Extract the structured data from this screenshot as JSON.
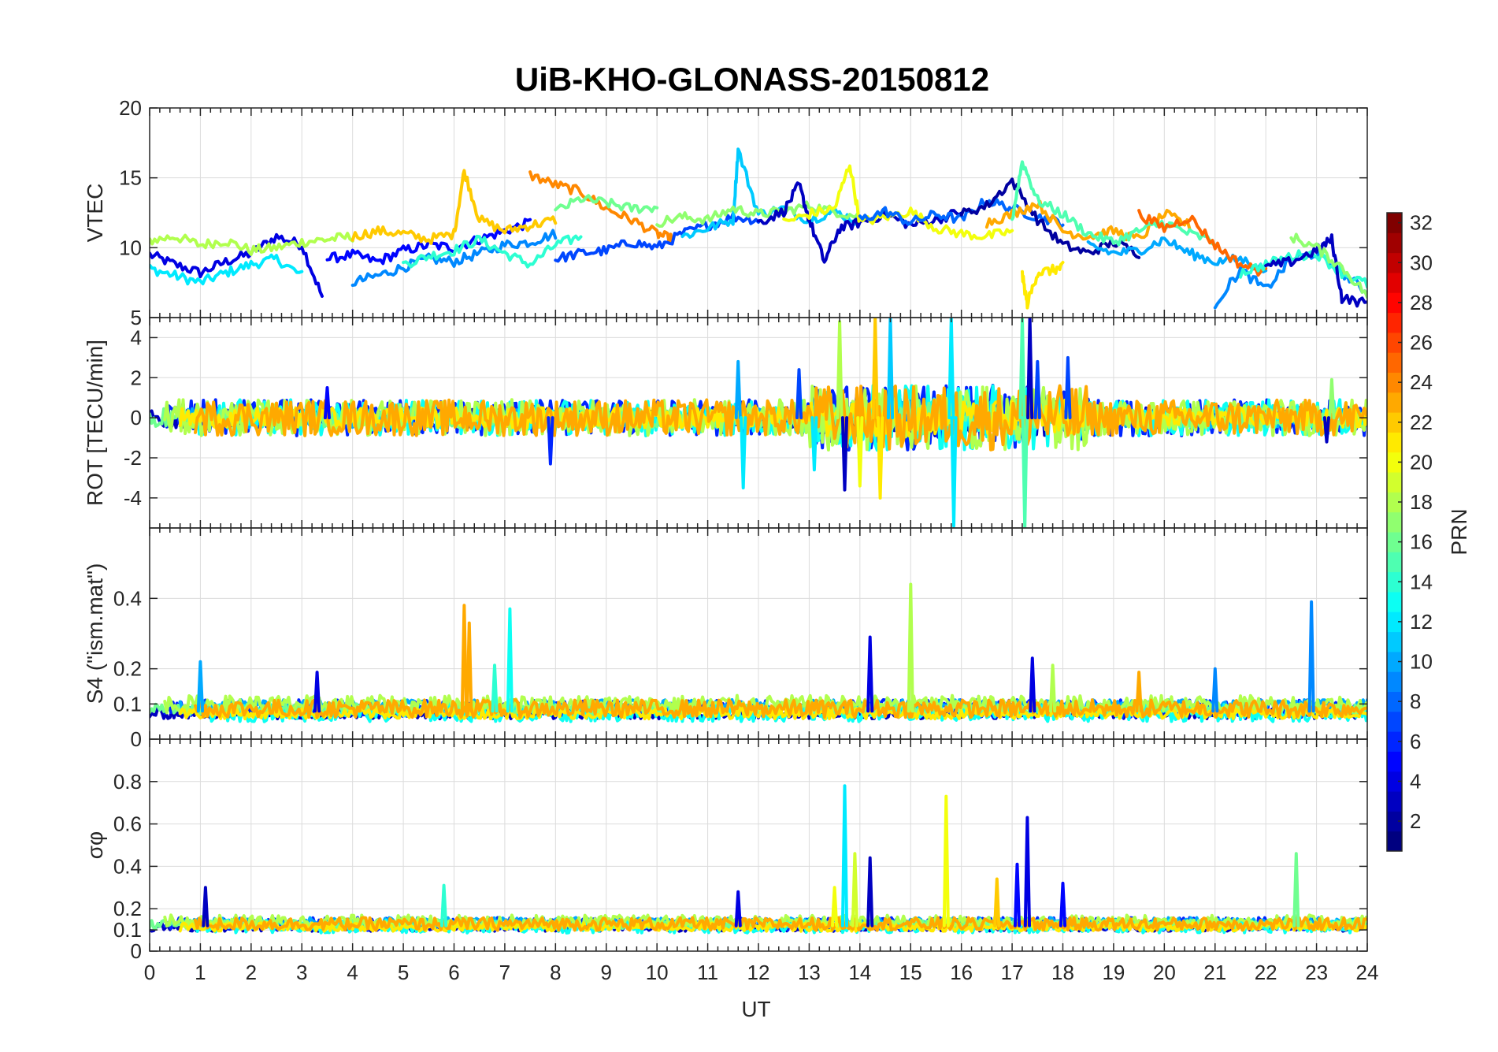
{
  "chart_data": {
    "type": "line",
    "title": "UiB-KHO-GLONASS-20150812",
    "xlabel": "UT",
    "xlim": [
      0,
      24
    ],
    "xticks": [
      "0",
      "1",
      "2",
      "3",
      "4",
      "5",
      "6",
      "7",
      "8",
      "9",
      "10",
      "11",
      "12",
      "13",
      "14",
      "15",
      "16",
      "17",
      "18",
      "19",
      "20",
      "21",
      "22",
      "23",
      "24"
    ],
    "colorbar": {
      "label": "PRN",
      "range": [
        1,
        32
      ],
      "ticks": [
        "2",
        "4",
        "6",
        "8",
        "10",
        "12",
        "14",
        "16",
        "18",
        "20",
        "22",
        "24",
        "26",
        "28",
        "30",
        "32"
      ],
      "colormap": "jet"
    },
    "panels": [
      {
        "id": "vtec",
        "ylabel": "VTEC",
        "ylim": [
          5,
          20
        ],
        "yticks": [
          "5",
          "10",
          "15",
          "20"
        ],
        "series": [
          {
            "prn": 4,
            "x": [
              0,
              0.5,
              1,
              1.5,
              2,
              2.5,
              3,
              3.4
            ],
            "y": [
              9.5,
              8.8,
              8.2,
              9.0,
              9.6,
              10.8,
              10.2,
              6.5
            ]
          },
          {
            "prn": 12,
            "x": [
              0,
              0.5,
              1,
              1.5,
              2,
              2.5,
              3
            ],
            "y": [
              8.5,
              8.0,
              7.5,
              8.2,
              8.8,
              9.2,
              8.0
            ]
          },
          {
            "prn": 18,
            "x": [
              0,
              0.5,
              1,
              1.5,
              2,
              2.5,
              3,
              3.5,
              4
            ],
            "y": [
              10.5,
              10.8,
              10.2,
              10.5,
              9.8,
              10.0,
              10.4,
              10.6,
              10.8
            ]
          },
          {
            "prn": 5,
            "x": [
              3.5,
              4,
              4.5,
              5,
              5.5,
              6,
              6.5,
              7,
              7.5
            ],
            "y": [
              9.2,
              9.5,
              9.0,
              9.8,
              10.2,
              10.0,
              10.6,
              11.2,
              11.8
            ]
          },
          {
            "prn": 9,
            "x": [
              4,
              4.5,
              5,
              5.5,
              6,
              6.5,
              7,
              7.5,
              8
            ],
            "y": [
              7.5,
              8.0,
              8.6,
              9.2,
              9.0,
              9.6,
              10.2,
              10.4,
              11.0
            ]
          },
          {
            "prn": 14,
            "x": [
              5,
              5.5,
              6,
              6.5,
              7,
              7.5,
              8,
              8.5
            ],
            "y": [
              8.8,
              9.4,
              9.8,
              10.6,
              9.6,
              8.8,
              10.2,
              10.8
            ]
          },
          {
            "prn": 22,
            "x": [
              4,
              4.5,
              5,
              5.5,
              6,
              6.2,
              6.5,
              7,
              7.5,
              8
            ],
            "y": [
              10.8,
              11.2,
              11.0,
              10.6,
              11.0,
              15.5,
              12.0,
              11.2,
              11.6,
              12.0
            ]
          },
          {
            "prn": 24,
            "x": [
              7.5,
              8,
              8.5,
              9,
              9.5,
              10,
              10.3
            ],
            "y": [
              15.2,
              14.5,
              14.0,
              12.8,
              12.0,
              11.0,
              10.6
            ]
          },
          {
            "prn": 16,
            "x": [
              8,
              8.5,
              9,
              9.5,
              10
            ],
            "y": [
              12.6,
              13.5,
              13.2,
              12.8,
              12.9
            ]
          },
          {
            "prn": 7,
            "x": [
              8,
              8.5,
              9,
              9.5,
              10,
              10.5,
              11,
              11.5,
              12
            ],
            "y": [
              9.2,
              9.6,
              9.8,
              10.4,
              10.0,
              11.0,
              11.6,
              12.2,
              12.0
            ]
          },
          {
            "prn": 11,
            "x": [
              10.5,
              11,
              11.5,
              11.6,
              12,
              12.5,
              13,
              13.5,
              14
            ],
            "y": [
              10.8,
              11.4,
              12.0,
              17.0,
              12.4,
              12.8,
              12.0,
              12.6,
              11.8
            ]
          },
          {
            "prn": 17,
            "x": [
              10,
              10.5,
              11,
              11.5,
              12,
              12.5,
              13,
              13.5,
              14
            ],
            "y": [
              11.8,
              12.2,
              12.0,
              12.8,
              12.4,
              12.6,
              13.0,
              12.6,
              12.2
            ]
          },
          {
            "prn": 3,
            "x": [
              12,
              12.5,
              12.8,
              13,
              13.3,
              13.6,
              14,
              14.5,
              15,
              15.5,
              16
            ],
            "y": [
              11.8,
              12.6,
              14.5,
              12.0,
              9.0,
              11.4,
              11.8,
              12.4,
              11.6,
              12.0,
              12.6
            ]
          },
          {
            "prn": 20,
            "x": [
              12.5,
              13,
              13.5,
              13.8,
              14,
              14.5,
              15,
              15.5,
              16,
              16.5,
              17
            ],
            "y": [
              11.8,
              12.4,
              12.8,
              16.0,
              11.8,
              12.2,
              12.6,
              11.4,
              11.0,
              10.8,
              11.2
            ]
          },
          {
            "prn": 8,
            "x": [
              14,
              14.5,
              15,
              15.5,
              16,
              16.5,
              17,
              17.5,
              18
            ],
            "y": [
              12.0,
              12.6,
              11.8,
              12.4,
              12.0,
              13.4,
              12.8,
              12.2,
              11.8
            ]
          },
          {
            "prn": 2,
            "x": [
              16,
              16.5,
              17,
              17.5,
              18,
              18.5,
              19,
              19.5
            ],
            "y": [
              12.4,
              13.0,
              14.8,
              12.0,
              10.2,
              9.6,
              10.4,
              9.6
            ]
          },
          {
            "prn": 23,
            "x": [
              16.5,
              17,
              17.5,
              18,
              18.5,
              19,
              19.5,
              20,
              20.5
            ],
            "y": [
              11.8,
              12.4,
              13.2,
              11.2,
              10.8,
              11.2,
              10.6,
              12.4,
              11.6
            ]
          },
          {
            "prn": 15,
            "x": [
              17,
              17.2,
              17.5,
              18,
              18.5,
              19,
              19.5,
              20,
              20.5,
              21
            ],
            "y": [
              12.0,
              16.2,
              13.4,
              12.4,
              11.0,
              10.4,
              11.2,
              11.8,
              11.0,
              10.4
            ]
          },
          {
            "prn": 21,
            "x": [
              17.2,
              17.3,
              17.5,
              17.8,
              18
            ],
            "y": [
              8.0,
              6.0,
              8.2,
              8.4,
              8.6
            ]
          },
          {
            "prn": 10,
            "x": [
              18.5,
              19,
              19.5,
              20,
              20.5,
              21,
              21.5,
              22
            ],
            "y": [
              10.2,
              9.6,
              9.8,
              10.6,
              9.6,
              9.0,
              9.2,
              8.4
            ]
          },
          {
            "prn": 25,
            "x": [
              19.5,
              20,
              20.5,
              21,
              21.5,
              22
            ],
            "y": [
              12.4,
              11.4,
              12.2,
              10.2,
              8.8,
              8.2
            ]
          },
          {
            "prn": 9,
            "x": [
              21,
              21.5,
              22,
              22.5,
              23,
              23.5,
              24
            ],
            "y": [
              6.0,
              8.4,
              7.0,
              9.2,
              9.6,
              8.2,
              6.8
            ]
          },
          {
            "prn": 14,
            "x": [
              21.5,
              22,
              22.5,
              23,
              23.5,
              24
            ],
            "y": [
              8.2,
              8.8,
              9.4,
              9.6,
              8.2,
              7.4
            ]
          },
          {
            "prn": 3,
            "x": [
              22,
              22.5,
              23,
              23.3,
              23.5,
              24
            ],
            "y": [
              8.6,
              9.0,
              9.8,
              10.6,
              6.4,
              6.0
            ]
          },
          {
            "prn": 17,
            "x": [
              22.5,
              23,
              23.5,
              24
            ],
            "y": [
              10.8,
              10.0,
              8.6,
              6.6
            ]
          }
        ]
      },
      {
        "id": "rot",
        "ylabel": "ROT [TECU/min]",
        "ylim": [
          -5.5,
          5
        ],
        "yticks": [
          "-4",
          "-2",
          "0",
          "2",
          "4"
        ],
        "yticks_values": [
          -4,
          -2,
          0,
          2,
          4
        ],
        "spikes": [
          {
            "x": 3.5,
            "y": 1.5,
            "prn": 5
          },
          {
            "x": 7.9,
            "y": -2.3,
            "prn": 6
          },
          {
            "x": 11.6,
            "y": 2.8,
            "prn": 10
          },
          {
            "x": 11.7,
            "y": -3.5,
            "prn": 12
          },
          {
            "x": 12.8,
            "y": 2.4,
            "prn": 7
          },
          {
            "x": 13.1,
            "y": -2.6,
            "prn": 12
          },
          {
            "x": 13.6,
            "y": 4.8,
            "prn": 18
          },
          {
            "x": 13.7,
            "y": -3.6,
            "prn": 3
          },
          {
            "x": 14.0,
            "y": -3.4,
            "prn": 20
          },
          {
            "x": 14.3,
            "y": 5.0,
            "prn": 22
          },
          {
            "x": 14.4,
            "y": -4.0,
            "prn": 21
          },
          {
            "x": 14.6,
            "y": 5.0,
            "prn": 11
          },
          {
            "x": 15.8,
            "y": 5.0,
            "prn": 12
          },
          {
            "x": 15.85,
            "y": -5.4,
            "prn": 12
          },
          {
            "x": 17.2,
            "y": 5.0,
            "prn": 15
          },
          {
            "x": 17.25,
            "y": -5.5,
            "prn": 15
          },
          {
            "x": 17.35,
            "y": 5.0,
            "prn": 3
          },
          {
            "x": 17.5,
            "y": 2.8,
            "prn": 7
          },
          {
            "x": 18.1,
            "y": 3.0,
            "prn": 7
          },
          {
            "x": 23.3,
            "y": 1.9,
            "prn": 17
          },
          {
            "x": 23.2,
            "y": -1.2,
            "prn": 3
          }
        ]
      },
      {
        "id": "s4",
        "ylabel": "S4 (\"ism.mat\")",
        "ylim": [
          0,
          0.6
        ],
        "yticks": [
          "0",
          "0.1",
          "0.2",
          "0.4"
        ],
        "yticks_values": [
          0,
          0.1,
          0.2,
          0.4
        ],
        "peaks": [
          {
            "x": 1.0,
            "y": 0.22,
            "prn": 10
          },
          {
            "x": 6.2,
            "y": 0.38,
            "prn": 23
          },
          {
            "x": 6.3,
            "y": 0.33,
            "prn": 23
          },
          {
            "x": 7.1,
            "y": 0.37,
            "prn": 13
          },
          {
            "x": 14.2,
            "y": 0.29,
            "prn": 4
          },
          {
            "x": 15.0,
            "y": 0.44,
            "prn": 18
          },
          {
            "x": 17.4,
            "y": 0.23,
            "prn": 4
          },
          {
            "x": 17.8,
            "y": 0.21,
            "prn": 18
          },
          {
            "x": 21.0,
            "y": 0.2,
            "prn": 9
          },
          {
            "x": 22.9,
            "y": 0.39,
            "prn": 9
          },
          {
            "x": 6.8,
            "y": 0.21,
            "prn": 14
          },
          {
            "x": 3.3,
            "y": 0.19,
            "prn": 4
          },
          {
            "x": 19.5,
            "y": 0.19,
            "prn": 23
          }
        ]
      },
      {
        "id": "sigma_phi",
        "ylabel": "σφ",
        "ylim": [
          0,
          1
        ],
        "yticks": [
          "0",
          "0.1",
          "0.2",
          "0.4",
          "0.6",
          "0.8"
        ],
        "yticks_values": [
          0,
          0.1,
          0.2,
          0.4,
          0.6,
          0.8
        ],
        "peaks": [
          {
            "x": 1.1,
            "y": 0.3,
            "prn": 3
          },
          {
            "x": 5.8,
            "y": 0.31,
            "prn": 14
          },
          {
            "x": 13.7,
            "y": 0.78,
            "prn": 12
          },
          {
            "x": 13.9,
            "y": 0.46,
            "prn": 19
          },
          {
            "x": 14.2,
            "y": 0.44,
            "prn": 3
          },
          {
            "x": 15.7,
            "y": 0.73,
            "prn": 20
          },
          {
            "x": 16.7,
            "y": 0.34,
            "prn": 22
          },
          {
            "x": 17.1,
            "y": 0.41,
            "prn": 5
          },
          {
            "x": 17.3,
            "y": 0.63,
            "prn": 4
          },
          {
            "x": 18.0,
            "y": 0.32,
            "prn": 5
          },
          {
            "x": 22.6,
            "y": 0.46,
            "prn": 16
          },
          {
            "x": 11.6,
            "y": 0.28,
            "prn": 4
          },
          {
            "x": 13.5,
            "y": 0.3,
            "prn": 20
          }
        ]
      }
    ]
  }
}
